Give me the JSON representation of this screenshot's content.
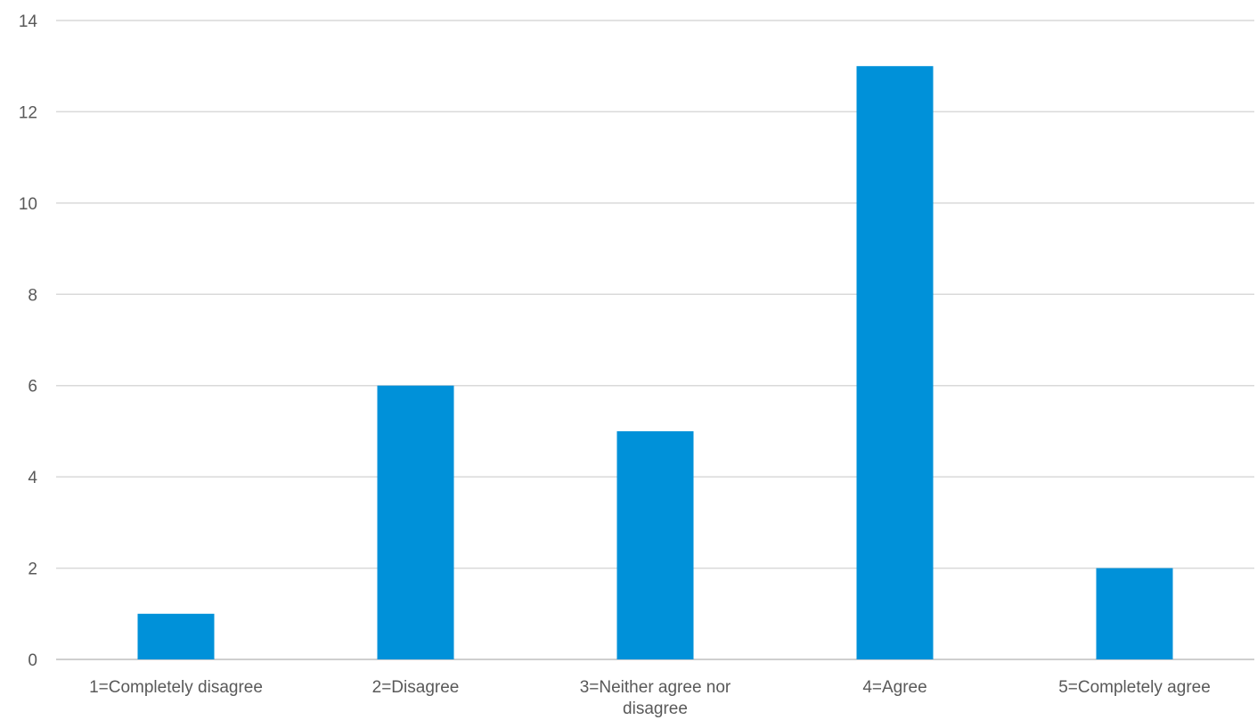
{
  "chart_data": {
    "type": "bar",
    "title": "",
    "xlabel": "",
    "ylabel": "",
    "categories": [
      "1=Completely disagree",
      "2=Disagree",
      "3=Neither agree nor disagree",
      "4=Agree",
      "5=Completely agree"
    ],
    "category_label_lines": [
      [
        "1=Completely disagree"
      ],
      [
        "2=Disagree"
      ],
      [
        "3=Neither agree nor",
        "disagree"
      ],
      [
        "4=Agree"
      ],
      [
        "5=Completely agree"
      ]
    ],
    "values": [
      1,
      6,
      5,
      13,
      2
    ],
    "ylim": [
      0,
      14
    ],
    "yticks": [
      0,
      2,
      4,
      6,
      8,
      10,
      12,
      14
    ],
    "grid": true,
    "legend": "none",
    "bar_color": "#0091D9"
  }
}
